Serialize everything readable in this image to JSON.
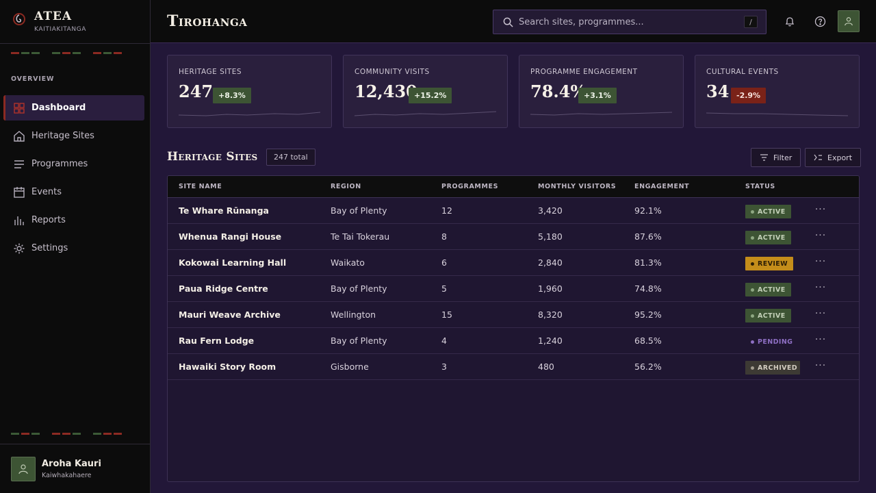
{
  "brand": {
    "name": "ATEA",
    "subtitle": "KAITIAKITANGA"
  },
  "sidebar": {
    "section_label": "OVERVIEW",
    "items": [
      {
        "label": "Dashboard",
        "icon": "grid-icon",
        "active": true
      },
      {
        "label": "Heritage Sites",
        "icon": "home-icon",
        "active": false
      },
      {
        "label": "Programmes",
        "icon": "list-icon",
        "active": false
      },
      {
        "label": "Events",
        "icon": "calendar-icon",
        "active": false
      },
      {
        "label": "Reports",
        "icon": "bar-chart-icon",
        "active": false
      },
      {
        "label": "Settings",
        "icon": "sun-gear-icon",
        "active": false
      }
    ]
  },
  "user": {
    "name": "Aroha Kauri",
    "role": "Kaiwhakahaere"
  },
  "header": {
    "title": "Tirohanga",
    "search_placeholder": "Search sites, programmes...",
    "search_shortcut": "/"
  },
  "kpis": [
    {
      "label": "HERITAGE SITES",
      "value": "247",
      "delta": "+8.3%",
      "trend": "up"
    },
    {
      "label": "COMMUNITY VISITS",
      "value": "12,430",
      "delta": "+15.2%",
      "trend": "up"
    },
    {
      "label": "PROGRAMME ENGAGEMENT",
      "value": "78.4%",
      "delta": "+3.1%",
      "trend": "up"
    },
    {
      "label": "CULTURAL EVENTS",
      "value": "34",
      "delta": "-2.9%",
      "trend": "down"
    }
  ],
  "table": {
    "title": "Heritage Sites",
    "total": "247 total",
    "filter_label": "Filter",
    "export_label": "Export",
    "columns": [
      "SITE NAME",
      "REGION",
      "PROGRAMMES",
      "MONTHLY VISITORS",
      "ENGAGEMENT",
      "STATUS"
    ],
    "rows": [
      {
        "name": "Te Whare Rūnanga",
        "region": "Bay of Plenty",
        "programmes": "12",
        "visitors": "3,420",
        "engagement": "92.1%",
        "status": "ACTIVE",
        "status_kind": "active"
      },
      {
        "name": "Whenua Rangi House",
        "region": "Te Tai Tokerau",
        "programmes": "8",
        "visitors": "5,180",
        "engagement": "87.6%",
        "status": "ACTIVE",
        "status_kind": "active"
      },
      {
        "name": "Kokowai Learning Hall",
        "region": "Waikato",
        "programmes": "6",
        "visitors": "2,840",
        "engagement": "81.3%",
        "status": "REVIEW",
        "status_kind": "review"
      },
      {
        "name": "Paua Ridge Centre",
        "region": "Bay of Plenty",
        "programmes": "5",
        "visitors": "1,960",
        "engagement": "74.8%",
        "status": "ACTIVE",
        "status_kind": "active"
      },
      {
        "name": "Mauri Weave Archive",
        "region": "Wellington",
        "programmes": "15",
        "visitors": "8,320",
        "engagement": "95.2%",
        "status": "ACTIVE",
        "status_kind": "active"
      },
      {
        "name": "Rau Fern Lodge",
        "region": "Bay of Plenty",
        "programmes": "4",
        "visitors": "1,240",
        "engagement": "68.5%",
        "status": "PENDING",
        "status_kind": "pending"
      },
      {
        "name": "Hawaiki Story Room",
        "region": "Gisborne",
        "programmes": "3",
        "visitors": "480",
        "engagement": "56.2%",
        "status": "ARCHIVED",
        "status_kind": "archived"
      }
    ]
  },
  "colors": {
    "accent_red": "#8c2a22",
    "accent_green": "#3d5434",
    "background": "#221738",
    "review": "#c48d1a",
    "pending": "#8e6fc4"
  }
}
